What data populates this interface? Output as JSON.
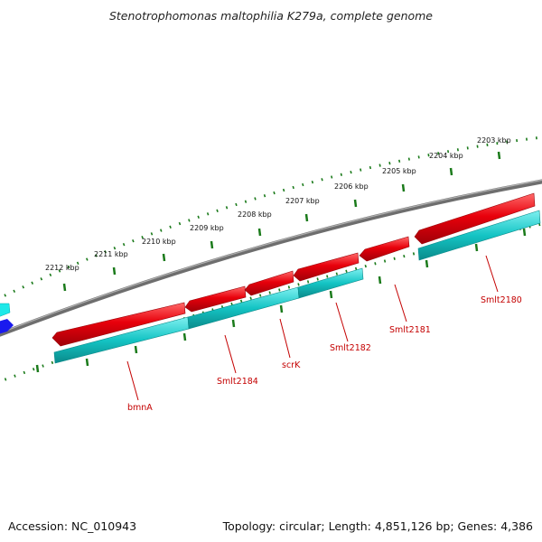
{
  "header": {
    "title": "Stenotrophomonas maltophilia K279a, complete genome"
  },
  "footer": {
    "accession": "Accession: NC_010943",
    "topology": "Topology: circular; Length: 4,851,126 bp; Genes: 4,386"
  },
  "ruler": {
    "ticks": [
      "2212 kbp",
      "2211 kbp",
      "2210 kbp",
      "2209 kbp",
      "2208 kbp",
      "2207 kbp",
      "2206 kbp",
      "2205 kbp",
      "2204 kbp",
      "2203 kbp"
    ]
  },
  "genes": [
    {
      "name": "bmnA",
      "strand": "reverse"
    },
    {
      "name": "Smlt2184",
      "strand": "reverse"
    },
    {
      "name": "scrK",
      "strand": "reverse"
    },
    {
      "name": "Smlt2182",
      "strand": "reverse"
    },
    {
      "name": "Smlt2181",
      "strand": "reverse"
    },
    {
      "name": "Smlt2180",
      "strand": "reverse"
    }
  ],
  "colors": {
    "cds": "#e8000b",
    "gene": "#14c4c4",
    "backbone": "#777777",
    "ticks": "#1a7a1a",
    "label": "#c40000",
    "forward_feature": "#1a1aee",
    "forward_gene": "#1ee8e8"
  }
}
